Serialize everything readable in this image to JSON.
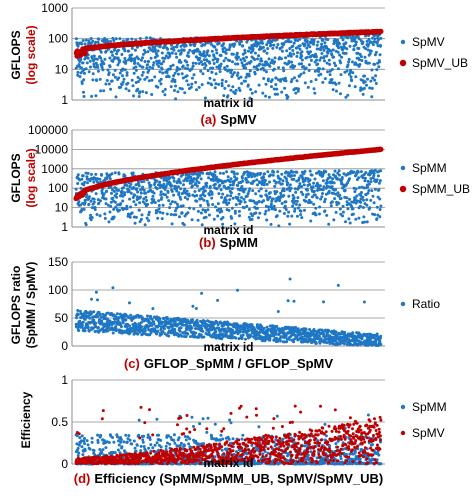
{
  "colors": {
    "blue": "#1f77c4",
    "red": "#c00000",
    "grid": "#8c8c8c",
    "axis": "#8c8c8c",
    "text": "#000000"
  },
  "chart_data": [
    {
      "id": "a",
      "type": "scatter",
      "yscale": "log",
      "ylim": [
        1,
        1000
      ],
      "yticks": [
        "1",
        "10",
        "100",
        "1000"
      ],
      "ylabel_line1": "GFLOPS",
      "ylabel_line2": "(log scale)",
      "xlabel": "matrix id",
      "caption_prefix": "(a)",
      "caption_text": "SpMV",
      "grid": true,
      "legend_position": "right",
      "series": [
        {
          "name": "SpMV",
          "color": "blue",
          "trend": "scattered",
          "low": 1,
          "high": 100,
          "points": 1200
        },
        {
          "name": "SpMV_UB",
          "color": "red",
          "trend": "rising",
          "start": 40,
          "end": 170,
          "points": 700
        }
      ]
    },
    {
      "id": "b",
      "type": "scatter",
      "yscale": "log",
      "ylim": [
        1,
        100000
      ],
      "yticks": [
        "1",
        "10",
        "100",
        "1000",
        "10000",
        "100000"
      ],
      "ylabel_line1": "GFLOPS",
      "ylabel_line2": "(log scale)",
      "xlabel": "matrix id",
      "caption_prefix": "(b)",
      "caption_text": "SpMM",
      "grid": true,
      "legend_position": "right",
      "series": [
        {
          "name": "SpMM",
          "color": "blue",
          "trend": "scattered",
          "low": 1,
          "high": 600,
          "points": 1200
        },
        {
          "name": "SpMM_UB",
          "color": "red",
          "trend": "rising",
          "start": 40,
          "end": 10000,
          "points": 700
        }
      ]
    },
    {
      "id": "c",
      "type": "scatter",
      "yscale": "linear",
      "ylim": [
        0,
        150
      ],
      "yticks": [
        "0",
        "50",
        "100",
        "150"
      ],
      "ylabel_line1": "GFLOPS ratio",
      "ylabel_line2": "(SpMM / SpMV)",
      "xlabel": "matrix id",
      "caption_prefix": "(c)",
      "caption_text": "GFLOP_SpMM / GFLOP_SpMV",
      "grid": true,
      "legend_position": "right",
      "series": [
        {
          "name": "Ratio",
          "color": "blue",
          "trend": "declining",
          "start": 45,
          "end": 10,
          "max": 120,
          "points": 1300
        }
      ]
    },
    {
      "id": "d",
      "type": "scatter",
      "yscale": "linear",
      "ylim": [
        0,
        1
      ],
      "yticks": [
        "0",
        "0.5",
        "1"
      ],
      "ylabel_line1": "Efficiency",
      "ylabel_line2": "",
      "xlabel": "matrix id",
      "caption_prefix": "(d)",
      "caption_text": "Efficiency (SpMM/SpMM_UB, SpMV/SpMV_UB)",
      "grid": true,
      "legend_position": "right",
      "series": [
        {
          "name": "SpMM",
          "color": "blue",
          "trend": "low",
          "typical": 0.1,
          "max": 0.6,
          "points": 1100
        },
        {
          "name": "SpMV",
          "color": "red",
          "trend": "rising",
          "start": 0.05,
          "end": 0.4,
          "max": 0.7,
          "points": 1100
        }
      ]
    }
  ]
}
